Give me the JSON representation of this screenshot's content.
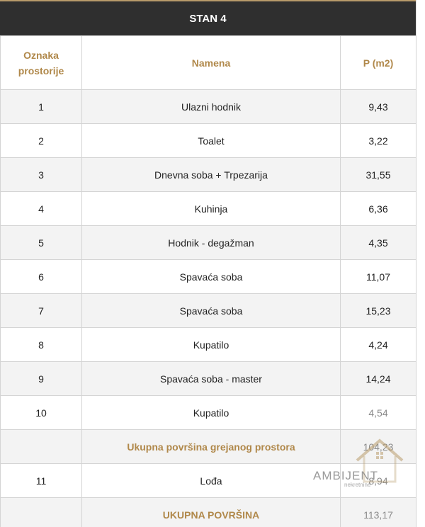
{
  "table_title": "STAN 4",
  "headers": {
    "col1": "Oznaka prostorije",
    "col2": "Namena",
    "col3": "P (m2)"
  },
  "rows": [
    {
      "id": "1",
      "name": "Ulazni hodnik",
      "area": "9,43"
    },
    {
      "id": "2",
      "name": "Toalet",
      "area": "3,22"
    },
    {
      "id": "3",
      "name": "Dnevna soba + Trpezarija",
      "area": "31,55"
    },
    {
      "id": "4",
      "name": "Kuhinja",
      "area": "6,36"
    },
    {
      "id": "5",
      "name": "Hodnik - degažman",
      "area": "4,35"
    },
    {
      "id": "6",
      "name": "Spavaća soba",
      "area": "11,07"
    },
    {
      "id": "7",
      "name": "Spavaća soba",
      "area": "15,23"
    },
    {
      "id": "8",
      "name": "Kupatilo",
      "area": "4,24"
    },
    {
      "id": "9",
      "name": "Spavaća soba - master",
      "area": "14,24"
    },
    {
      "id": "10",
      "name": "Kupatilo",
      "area": "4,54"
    }
  ],
  "heated_total": {
    "label": "Ukupna površina grejanog prostora",
    "area": "104,23"
  },
  "loggia": {
    "id": "11",
    "name": "Lođa",
    "area": "8,94"
  },
  "grand_total": {
    "label": "UKUPNA POVRŠINA",
    "area": "113,17"
  },
  "watermark": {
    "brand": "AMBIJENT",
    "sub": "nekretnine"
  },
  "colors": {
    "header_bg": "#2f2f2f",
    "accent_gold": "#b0884a",
    "row_shade": "#f3f3f3"
  }
}
